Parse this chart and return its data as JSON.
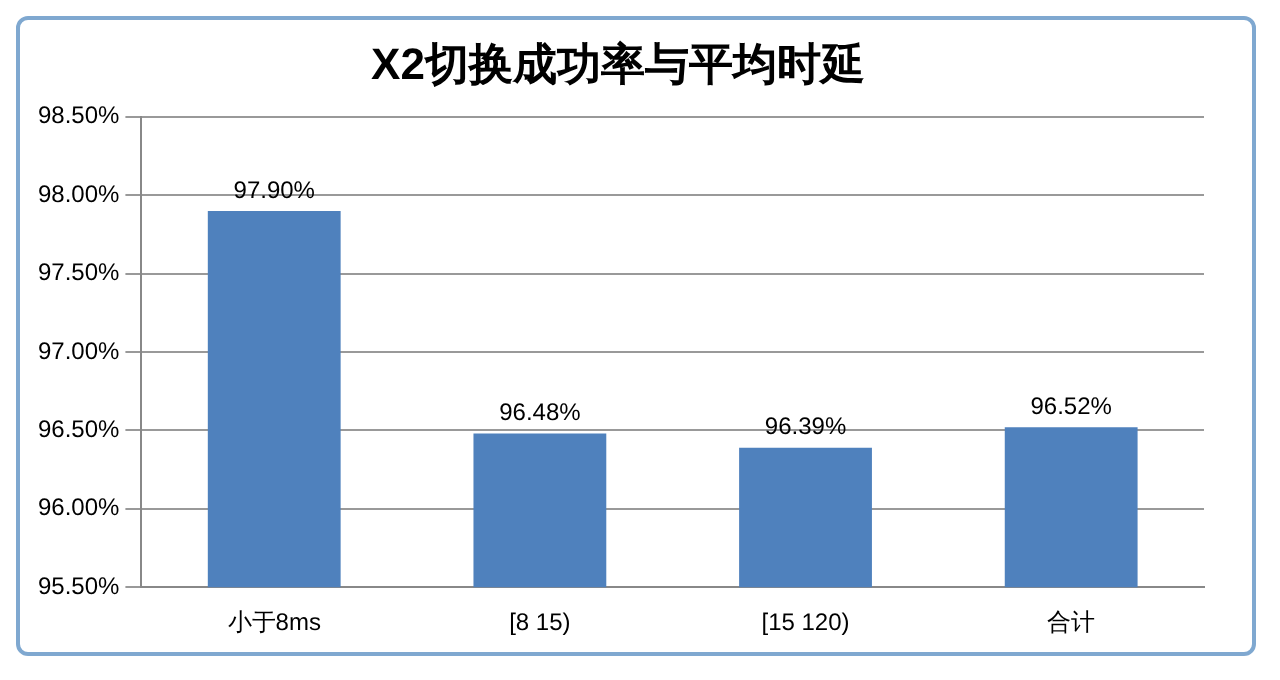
{
  "chart_data": {
    "type": "bar",
    "title": "X2切换成功率与平均时延",
    "categories": [
      "小于8ms",
      "[8 15)",
      "[15 120)",
      "合计"
    ],
    "values": [
      97.9,
      96.48,
      96.39,
      96.52
    ],
    "value_labels": [
      "97.90%",
      "96.48%",
      "96.39%",
      "96.52%"
    ],
    "color": "#4f81bd",
    "ylim": [
      95.5,
      98.5
    ],
    "yticks": [
      {
        "value": 95.5,
        "label": "95.50%"
      },
      {
        "value": 96,
        "label": "96.00%"
      },
      {
        "value": 96.5,
        "label": "96.50%"
      },
      {
        "value": 97,
        "label": "97.00%"
      },
      {
        "value": 97.5,
        "label": "97.50%"
      },
      {
        "value": 98,
        "label": "98.00%"
      },
      {
        "value": 98.5,
        "label": "98.50%"
      }
    ],
    "grid": "y"
  }
}
